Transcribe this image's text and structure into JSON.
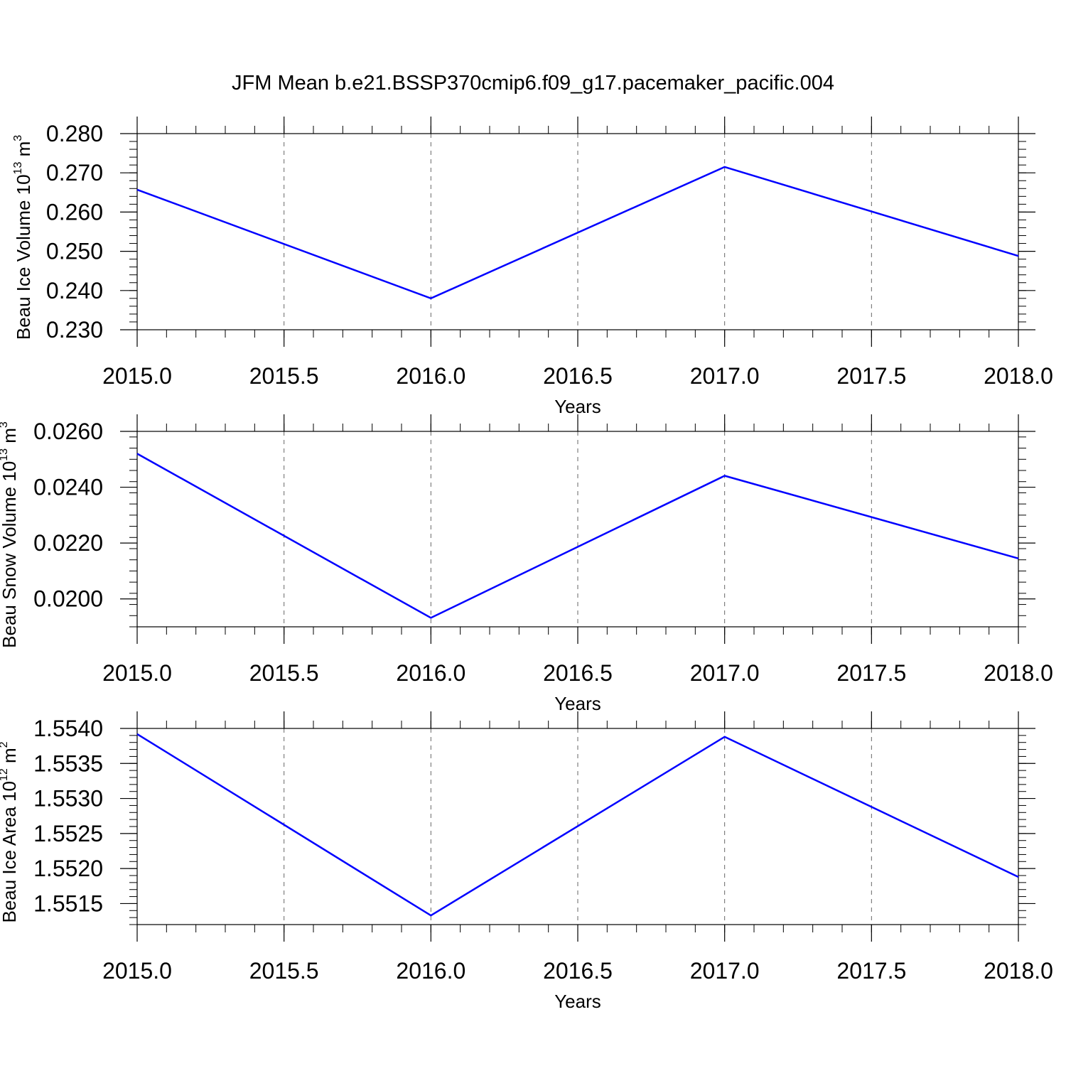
{
  "figure": {
    "title": "JFM Mean b.e21.BSSP370cmip6.f09_g17.pacemaker_pacific.004"
  },
  "style": {
    "line_color": "#0000ff",
    "axis_color": "#000000",
    "grid_color": "#666666"
  },
  "chart_data": [
    {
      "type": "line",
      "title": "",
      "xlabel": "Years",
      "ylabel": {
        "base": "Beau Ice Volume 10",
        "exponent": "13",
        "unit": " m",
        "unit_exponent": "3"
      },
      "x": [
        2015,
        2016,
        2017,
        2018
      ],
      "series": [
        {
          "values": [
            0.2657,
            0.238,
            0.2715,
            0.2488
          ]
        }
      ],
      "xlim": [
        2015.0,
        2018.0
      ],
      "ylim": [
        0.23,
        0.28
      ],
      "x_ticks": [
        "2015.0",
        "2015.5",
        "2016.0",
        "2016.5",
        "2017.0",
        "2017.5",
        "2018.0"
      ],
      "x_tick_values": [
        2015.0,
        2015.5,
        2016.0,
        2016.5,
        2017.0,
        2017.5,
        2018.0
      ],
      "y_ticks": [
        "0.230",
        "0.240",
        "0.250",
        "0.260",
        "0.270",
        "0.280"
      ],
      "y_tick_values": [
        0.23,
        0.24,
        0.25,
        0.26,
        0.27,
        0.28
      ],
      "y_minor_step": 0.002,
      "grid": "x-dashed"
    },
    {
      "type": "line",
      "title": "",
      "xlabel": "Years",
      "ylabel": {
        "base": "Beau Snow Volume 10",
        "exponent": "13",
        "unit": " m",
        "unit_exponent": "3"
      },
      "x": [
        2015,
        2016,
        2017,
        2018
      ],
      "series": [
        {
          "values": [
            0.0252,
            0.01932,
            0.02441,
            0.02145
          ]
        }
      ],
      "xlim": [
        2015.0,
        2018.0
      ],
      "ylim": [
        0.019,
        0.026
      ],
      "x_ticks": [
        "2015.0",
        "2015.5",
        "2016.0",
        "2016.5",
        "2017.0",
        "2017.5",
        "2018.0"
      ],
      "x_tick_values": [
        2015.0,
        2015.5,
        2016.0,
        2016.5,
        2017.0,
        2017.5,
        2018.0
      ],
      "y_ticks": [
        "0.0200",
        "0.0220",
        "0.0240",
        "0.0260"
      ],
      "y_tick_values": [
        0.02,
        0.022,
        0.024,
        0.026
      ],
      "y_minor_step": 0.0004,
      "grid": "x-dashed"
    },
    {
      "type": "line",
      "title": "",
      "xlabel": "Years",
      "ylabel": {
        "base": "Beau Ice Area 10",
        "exponent": "12",
        "unit": " m",
        "unit_exponent": "2"
      },
      "x": [
        2015,
        2016,
        2017,
        2018
      ],
      "series": [
        {
          "values": [
            1.55392,
            1.55133,
            1.55388,
            1.55188
          ]
        }
      ],
      "xlim": [
        2015.0,
        2018.0
      ],
      "ylim": [
        1.5512,
        1.554
      ],
      "x_ticks": [
        "2015.0",
        "2015.5",
        "2016.0",
        "2016.5",
        "2017.0",
        "2017.5",
        "2018.0"
      ],
      "x_tick_values": [
        2015.0,
        2015.5,
        2016.0,
        2016.5,
        2017.0,
        2017.5,
        2018.0
      ],
      "y_ticks": [
        "1.5515",
        "1.5520",
        "1.5525",
        "1.5530",
        "1.5535",
        "1.5540"
      ],
      "y_tick_values": [
        1.5515,
        1.552,
        1.5525,
        1.553,
        1.5535,
        1.554
      ],
      "y_minor_step": 0.0001,
      "grid": "x-dashed"
    }
  ]
}
